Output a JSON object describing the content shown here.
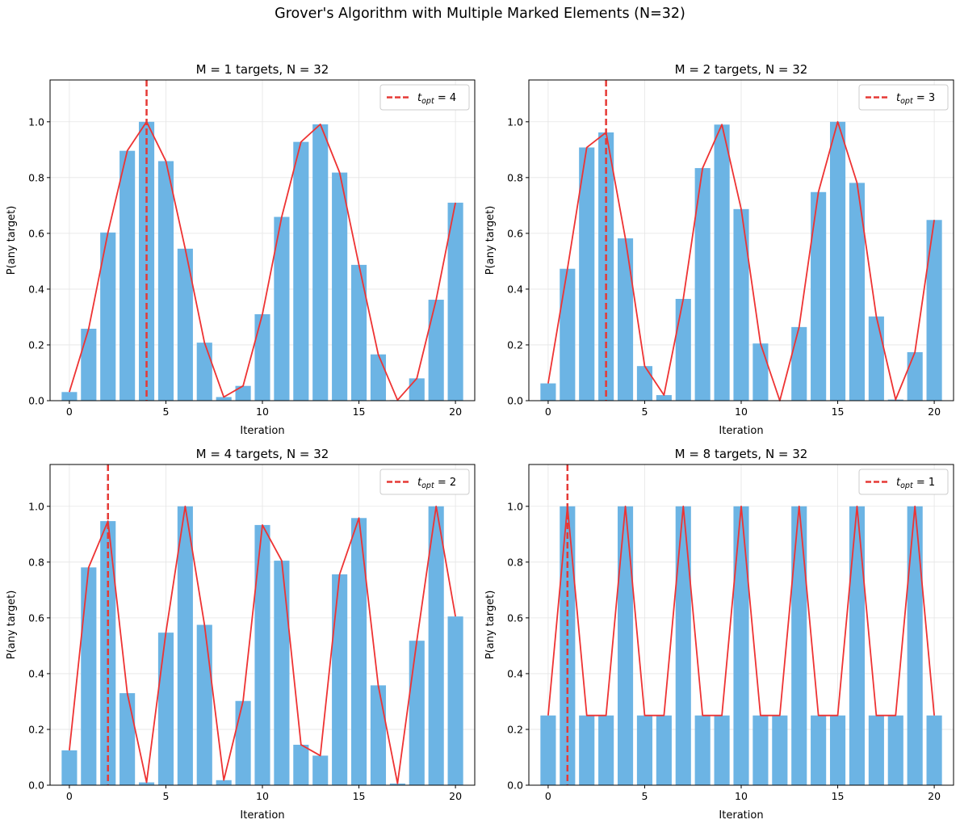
{
  "figure_title": "Grover's Algorithm with Multiple Marked Elements (N=32)",
  "colors": {
    "bar": "#6cb4e4",
    "line": "#ee3333",
    "vline": "#e53935",
    "grid": "#e5e5e5"
  },
  "chart_data": [
    {
      "type": "bar",
      "title": "M = 1 targets, N = 32",
      "xlabel": "Iteration",
      "ylabel": "P(any target)",
      "xlim": [
        -1,
        21
      ],
      "ylim": [
        0,
        1.15
      ],
      "xticks": [
        0,
        5,
        10,
        15,
        20
      ],
      "yticks": [
        0.0,
        0.2,
        0.4,
        0.6,
        0.8,
        1.0
      ],
      "grid": true,
      "legend_position": "upper right",
      "legend": {
        "label": "t_opt = 4",
        "subscript": "opt"
      },
      "t_opt": 4,
      "x": [
        0,
        1,
        2,
        3,
        4,
        5,
        6,
        7,
        8,
        9,
        10,
        11,
        12,
        13,
        14,
        15,
        16,
        17,
        18,
        19,
        20
      ],
      "values": [
        0.031,
        0.258,
        0.603,
        0.896,
        1.0,
        0.859,
        0.545,
        0.208,
        0.013,
        0.053,
        0.31,
        0.659,
        0.928,
        0.991,
        0.818,
        0.487,
        0.166,
        0.002,
        0.08,
        0.362,
        0.71
      ]
    },
    {
      "type": "bar",
      "title": "M = 2 targets, N = 32",
      "xlabel": "Iteration",
      "ylabel": "P(any target)",
      "xlim": [
        -1,
        21
      ],
      "ylim": [
        0,
        1.15
      ],
      "xticks": [
        0,
        5,
        10,
        15,
        20
      ],
      "yticks": [
        0.0,
        0.2,
        0.4,
        0.6,
        0.8,
        1.0
      ],
      "grid": true,
      "legend_position": "upper right",
      "legend": {
        "label": "t_opt = 3",
        "subscript": "opt"
      },
      "t_opt": 3,
      "x": [
        0,
        1,
        2,
        3,
        4,
        5,
        6,
        7,
        8,
        9,
        10,
        11,
        12,
        13,
        14,
        15,
        16,
        17,
        18,
        19,
        20
      ],
      "values": [
        0.062,
        0.473,
        0.908,
        0.962,
        0.582,
        0.124,
        0.02,
        0.365,
        0.834,
        0.99,
        0.687,
        0.205,
        0.0,
        0.264,
        0.748,
        1.0,
        0.781,
        0.302,
        0.004,
        0.174,
        0.648
      ]
    },
    {
      "type": "bar",
      "title": "M = 4 targets, N = 32",
      "xlabel": "Iteration",
      "ylabel": "P(any target)",
      "xlim": [
        -1,
        21
      ],
      "ylim": [
        0,
        1.15
      ],
      "xticks": [
        0,
        5,
        10,
        15,
        20
      ],
      "yticks": [
        0.0,
        0.2,
        0.4,
        0.6,
        0.8,
        1.0
      ],
      "grid": true,
      "legend_position": "upper right",
      "legend": {
        "label": "t_opt = 2",
        "subscript": "opt"
      },
      "t_opt": 2,
      "x": [
        0,
        1,
        2,
        3,
        4,
        5,
        6,
        7,
        8,
        9,
        10,
        11,
        12,
        13,
        14,
        15,
        16,
        17,
        18,
        19,
        20
      ],
      "values": [
        0.125,
        0.781,
        0.947,
        0.33,
        0.01,
        0.547,
        1.0,
        0.575,
        0.018,
        0.302,
        0.933,
        0.805,
        0.145,
        0.106,
        0.756,
        0.958,
        0.358,
        0.006,
        0.518,
        1.0,
        0.605
      ]
    },
    {
      "type": "bar",
      "title": "M = 8 targets, N = 32",
      "xlabel": "Iteration",
      "ylabel": "P(any target)",
      "xlim": [
        -1,
        21
      ],
      "ylim": [
        0,
        1.15
      ],
      "xticks": [
        0,
        5,
        10,
        15,
        20
      ],
      "yticks": [
        0.0,
        0.2,
        0.4,
        0.6,
        0.8,
        1.0
      ],
      "grid": true,
      "legend_position": "upper right",
      "legend": {
        "label": "t_opt = 1",
        "subscript": "opt"
      },
      "t_opt": 1,
      "x": [
        0,
        1,
        2,
        3,
        4,
        5,
        6,
        7,
        8,
        9,
        10,
        11,
        12,
        13,
        14,
        15,
        16,
        17,
        18,
        19,
        20
      ],
      "values": [
        0.25,
        1.0,
        0.25,
        0.25,
        1.0,
        0.25,
        0.25,
        1.0,
        0.25,
        0.25,
        1.0,
        0.25,
        0.25,
        1.0,
        0.25,
        0.25,
        1.0,
        0.25,
        0.25,
        1.0,
        0.25
      ]
    }
  ]
}
